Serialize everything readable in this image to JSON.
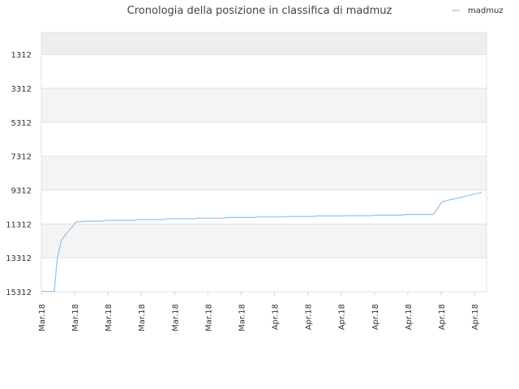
{
  "chart_data": {
    "type": "line",
    "title": "Cronologia della posizione in classifica di madmuz",
    "xlabel": "",
    "ylabel": "",
    "y_inverted": true,
    "ylim": [
      15312,
      10
    ],
    "yticks": [
      1312,
      3312,
      5312,
      7312,
      9312,
      11312,
      13312,
      15312
    ],
    "xticks": [
      "Mar.18",
      "Mar.18",
      "Mar.18",
      "Mar.18",
      "Mar.18",
      "Mar.18",
      "Mar.18",
      "Apr.18",
      "Apr.18",
      "Apr.18",
      "Apr.18",
      "Apr.18",
      "Apr.18",
      "Apr.18"
    ],
    "legend": {
      "position": "top-right"
    },
    "grid": true,
    "series": [
      {
        "name": "madmuz",
        "color": "#8fc3ea",
        "x": [
          0,
          1.3,
          1.6,
          2,
          2.5,
          3.1,
          3.5,
          4.5,
          6.2,
          6.5,
          9.5,
          9.6,
          12.5,
          12.7,
          15.5,
          15.6,
          18.5,
          18.8,
          21.5,
          21.7,
          24.5,
          24.8,
          27.5,
          27.7,
          30.5,
          30.8,
          33.5,
          33.7,
          36.5,
          36.8,
          39.5,
          39.7,
          40.5,
          44.5
        ],
        "y": [
          15300,
          15300,
          13400,
          12300,
          11900,
          11500,
          11200,
          11150,
          11150,
          11100,
          11100,
          11050,
          11050,
          11000,
          11000,
          10970,
          10970,
          10930,
          10930,
          10900,
          10900,
          10870,
          10870,
          10840,
          10840,
          10820,
          10820,
          10790,
          10790,
          10750,
          10750,
          10700,
          10000,
          9450
        ]
      }
    ]
  }
}
